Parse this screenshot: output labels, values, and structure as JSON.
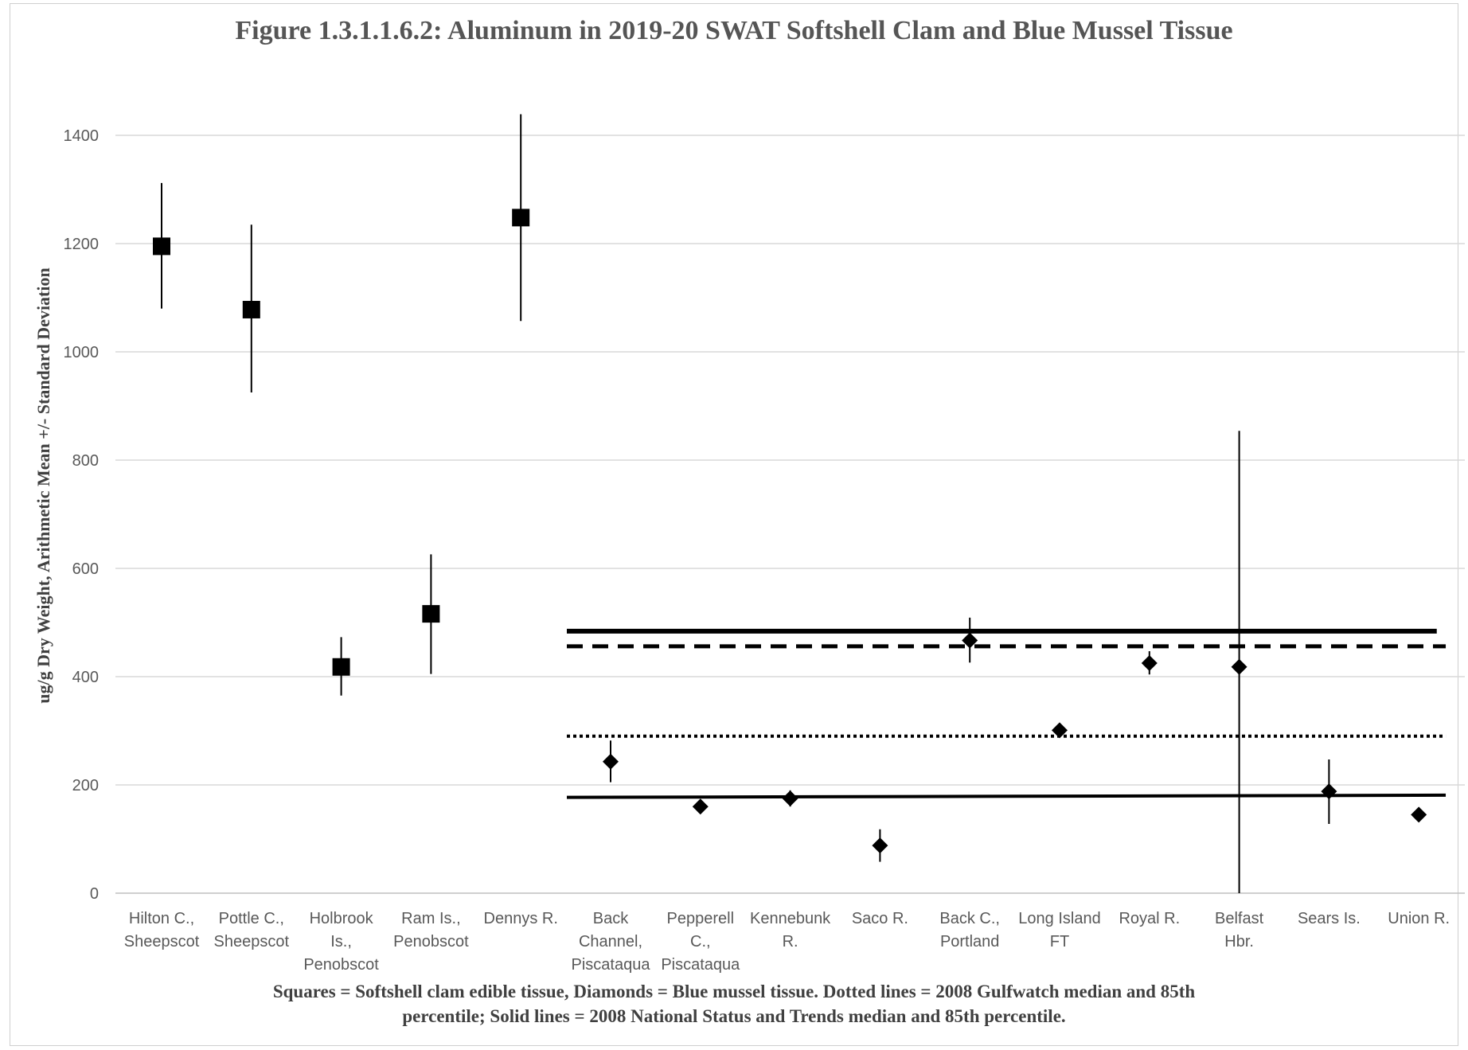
{
  "chart_data": {
    "type": "scatter",
    "title": "Figure 1.3.1.1.6.2:  Aluminum in 2019-20 SWAT  Softshell Clam and Blue Mussel Tissue",
    "ylabel": "ug/g Dry Weight, Arithmetic Mean +/- Standard Deviation",
    "xlabel": "",
    "ylim": [
      0,
      1400
    ],
    "yticks": [
      0,
      200,
      400,
      600,
      800,
      1000,
      1200,
      1400
    ],
    "grid": "horizontal",
    "categories": [
      [
        "Hilton C.,",
        "Sheepscot"
      ],
      [
        "Pottle C.,",
        "Sheepscot"
      ],
      [
        "Holbrook",
        "Is.,",
        "Penobscot"
      ],
      [
        "Ram Is.,",
        "Penobscot"
      ],
      [
        "Dennys R."
      ],
      [
        "Back",
        "Channel,",
        "Piscataqua"
      ],
      [
        "Pepperell",
        "C.,",
        "Piscataqua"
      ],
      [
        "Kennebunk",
        "R."
      ],
      [
        "Saco R."
      ],
      [
        "Back C.,",
        "Portland"
      ],
      [
        "Long Island",
        "FT"
      ],
      [
        "Royal R."
      ],
      [
        "Belfast",
        "Hbr."
      ],
      [
        "Sears Is."
      ],
      [
        "Union R."
      ]
    ],
    "series": [
      {
        "name": "Squares = Softshell clam edible tissue",
        "marker": "square",
        "color": "#000000",
        "points": [
          {
            "x": 0,
            "y": 1195,
            "low": 1080,
            "high": 1312
          },
          {
            "x": 1,
            "y": 1078,
            "low": 925,
            "high": 1235
          },
          {
            "x": 2,
            "y": 418,
            "low": 365,
            "high": 473
          },
          {
            "x": 3,
            "y": 516,
            "low": 405,
            "high": 626
          },
          {
            "x": 4,
            "y": 1248,
            "low": 1057,
            "high": 1439
          }
        ]
      },
      {
        "name": "Diamonds = Blue mussel tissue",
        "marker": "diamond",
        "color": "#000000",
        "points": [
          {
            "x": 5,
            "y": 243,
            "low": 205,
            "high": 282
          },
          {
            "x": 6,
            "y": 160,
            "low": null,
            "high": null
          },
          {
            "x": 7,
            "y": 175,
            "low": 160,
            "high": 190
          },
          {
            "x": 8,
            "y": 88,
            "low": 58,
            "high": 118
          },
          {
            "x": 9,
            "y": 467,
            "low": 426,
            "high": 509
          },
          {
            "x": 10,
            "y": 301,
            "low": null,
            "high": null
          },
          {
            "x": 11,
            "y": 425,
            "low": 404,
            "high": 447
          },
          {
            "x": 12,
            "y": 418,
            "low": 0,
            "high": 854
          },
          {
            "x": 13,
            "y": 188,
            "low": 128,
            "high": 247
          },
          {
            "x": 14,
            "y": 145,
            "low": null,
            "high": null
          }
        ]
      }
    ],
    "reference_lines": [
      {
        "name": "2008 National Status and Trends 85th percentile",
        "style": "solid-thick",
        "x_from": 5,
        "x_to": 14.2,
        "y_start": 484,
        "y_end": 484
      },
      {
        "name": "2008 Gulfwatch 85th percentile",
        "style": "dashed",
        "x_from": 5,
        "x_to": 14.3,
        "y_start": 456,
        "y_end": 456
      },
      {
        "name": "2008 Gulfwatch median",
        "style": "dotted",
        "x_from": 5,
        "x_to": 14.3,
        "y_start": 290,
        "y_end": 290
      },
      {
        "name": "2008 National Status and Trends median",
        "style": "solid",
        "x_from": 5,
        "x_to": 14.3,
        "y_start": 177,
        "y_end": 181
      }
    ],
    "caption": [
      "Squares = Softshell clam edible tissue, Diamonds = Blue mussel tissue.  Dotted lines = 2008 Gulfwatch median and 85th",
      "percentile; Solid lines = 2008 National Status and Trends  median and 85th percentile."
    ]
  }
}
